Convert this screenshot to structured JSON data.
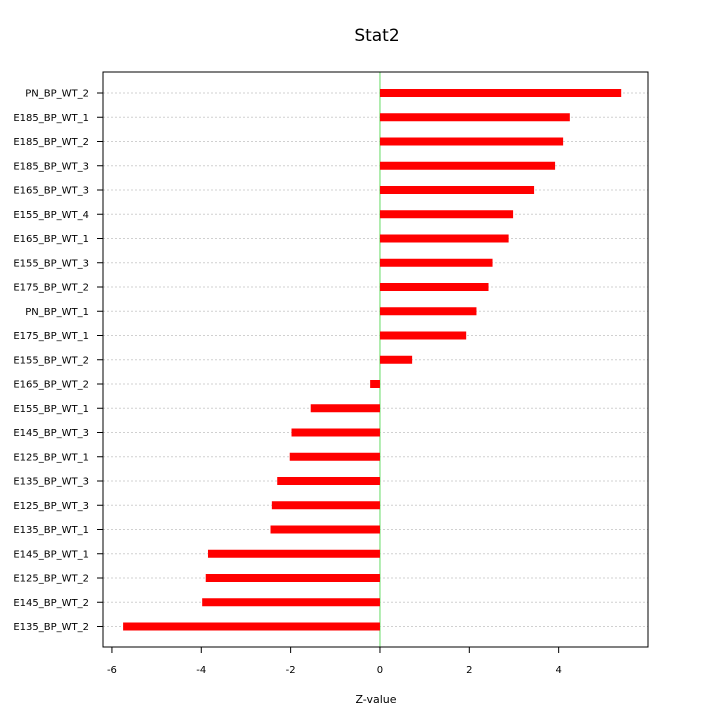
{
  "chart_data": {
    "type": "bar",
    "orientation": "horizontal",
    "title": "Stat2",
    "xlabel": "Z-value",
    "ylabel": "",
    "xlim": [
      -6.2,
      6.0
    ],
    "xticks": [
      -6,
      -4,
      -2,
      0,
      2,
      4
    ],
    "grid": true,
    "zero_line_color": "#7ee07e",
    "bar_color": "#ff0000",
    "categories": [
      "PN_BP_WT_2",
      "E185_BP_WT_1",
      "E185_BP_WT_2",
      "E185_BP_WT_3",
      "E165_BP_WT_3",
      "E155_BP_WT_4",
      "E165_BP_WT_1",
      "E155_BP_WT_3",
      "E175_BP_WT_2",
      "PN_BP_WT_1",
      "E175_BP_WT_1",
      "E155_BP_WT_2",
      "E165_BP_WT_2",
      "E155_BP_WT_1",
      "E145_BP_WT_3",
      "E125_BP_WT_1",
      "E135_BP_WT_3",
      "E125_BP_WT_3",
      "E135_BP_WT_1",
      "E145_BP_WT_1",
      "E125_BP_WT_2",
      "E145_BP_WT_2",
      "E135_BP_WT_2"
    ],
    "values": [
      5.4,
      4.25,
      4.1,
      3.92,
      3.45,
      2.98,
      2.88,
      2.52,
      2.43,
      2.16,
      1.93,
      0.72,
      -0.22,
      -1.55,
      -1.98,
      -2.02,
      -2.3,
      -2.42,
      -2.45,
      -3.85,
      -3.9,
      -3.98,
      -5.75
    ]
  }
}
